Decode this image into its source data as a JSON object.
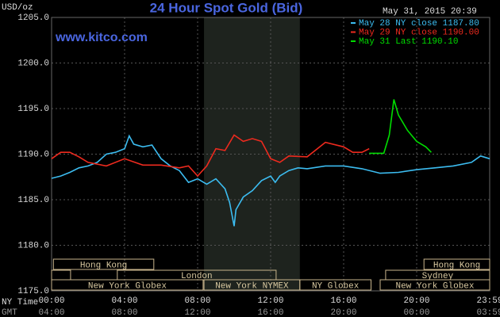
{
  "chart_data": {
    "type": "line",
    "title": "24 Hour Spot Gold (Bid)",
    "y_label": "USD/oz",
    "source": "www.kitco.com",
    "timestamp": "May 31, 2015 20:39",
    "x_label": "NY Time",
    "x2_label": "GMT",
    "xlim": [
      0,
      24
    ],
    "ylim": [
      1175,
      1205
    ],
    "yticks": [
      {
        "value": 1175,
        "label": "1175.0"
      },
      {
        "value": 1180,
        "label": "1180.0"
      },
      {
        "value": 1185,
        "label": "1185.0"
      },
      {
        "value": 1190,
        "label": "1190.0"
      },
      {
        "value": 1195,
        "label": "1195.0"
      },
      {
        "value": 1200,
        "label": "1200.0"
      },
      {
        "value": 1205,
        "label": "1205.0"
      }
    ],
    "xticks": [
      {
        "value": 0,
        "label": "00:00"
      },
      {
        "value": 4,
        "label": "04:00"
      },
      {
        "value": 8,
        "label": "08:00"
      },
      {
        "value": 12,
        "label": "12:00"
      },
      {
        "value": 16,
        "label": "16:00"
      },
      {
        "value": 20,
        "label": "20:00"
      },
      {
        "value": 24,
        "label": "23:59"
      }
    ],
    "x2ticks": [
      {
        "value": 0,
        "label": "04:00"
      },
      {
        "value": 4,
        "label": "08:00"
      },
      {
        "value": 8,
        "label": "12:00"
      },
      {
        "value": 12,
        "label": "16:00"
      },
      {
        "value": 16,
        "label": "20:00"
      },
      {
        "value": 20,
        "label": "00:00"
      },
      {
        "value": 24,
        "label": "03:59"
      }
    ],
    "grid": true,
    "shaded_range": [
      8.35,
      13.6
    ],
    "sessions": [
      {
        "label": "Hong Kong",
        "start": 0.1,
        "end": 5.6,
        "row": 0
      },
      {
        "label": "Hong Kong",
        "start": 20.4,
        "end": 24,
        "row": 0
      },
      {
        "label": null,
        "start": 0,
        "end": 1.04,
        "row": 1
      },
      {
        "label": "London",
        "start": 3.6,
        "end": 12.3,
        "row": 1
      },
      {
        "label": "Sydney",
        "start": 18.3,
        "end": 24,
        "row": 1
      },
      {
        "label": "New York Globex",
        "start": 0,
        "end": 8.3,
        "row": 2
      },
      {
        "label": "New York NYMEX",
        "start": 8.35,
        "end": 13.6,
        "row": 2
      },
      {
        "label": "NY Globex",
        "start": 13.6,
        "end": 17.5,
        "row": 2
      },
      {
        "label": "New York Globex",
        "start": 18.0,
        "end": 24,
        "row": 2
      }
    ],
    "series": [
      {
        "name": "May 28 NY close 1187.80",
        "color": "#3cbcf0",
        "x": [
          0,
          0.5,
          1,
          1.5,
          2,
          2.5,
          3,
          3.5,
          4,
          4.25,
          4.5,
          5,
          5.5,
          6,
          6.5,
          7,
          7.5,
          8,
          8.5,
          9,
          9.5,
          9.75,
          10,
          10.1,
          10.5,
          11,
          11.5,
          12,
          12.25,
          12.5,
          13,
          13.5,
          14,
          15,
          16,
          17,
          18,
          19,
          20,
          21,
          22,
          23,
          23.5,
          24
        ],
        "values": [
          1187.35,
          1187.6,
          1188.0,
          1188.5,
          1188.7,
          1189.1,
          1190.0,
          1190.2,
          1190.6,
          1192.0,
          1191.1,
          1190.8,
          1191.0,
          1189.5,
          1188.7,
          1188.2,
          1186.9,
          1187.3,
          1186.7,
          1187.3,
          1186.2,
          1184.7,
          1182.1,
          1183.9,
          1185.3,
          1186.0,
          1187.1,
          1187.6,
          1186.9,
          1187.6,
          1188.2,
          1188.5,
          1188.4,
          1188.7,
          1188.7,
          1188.4,
          1187.9,
          1188.0,
          1188.3,
          1188.5,
          1188.7,
          1189.1,
          1189.8,
          1189.5
        ]
      },
      {
        "name": "May 29 NY close 1190.00",
        "color": "#ee2a1e",
        "x": [
          0,
          0.5,
          1,
          1.5,
          2,
          3,
          4,
          5,
          6,
          7,
          7.5,
          8,
          8.5,
          9,
          9.5,
          10,
          10.5,
          11,
          11.5,
          12,
          12.5,
          13,
          14,
          15,
          16,
          16.5,
          17,
          17.4
        ],
        "values": [
          1189.5,
          1190.2,
          1190.2,
          1189.7,
          1189.1,
          1188.7,
          1189.5,
          1188.8,
          1188.8,
          1188.5,
          1188.7,
          1187.6,
          1188.7,
          1190.6,
          1190.4,
          1192.1,
          1191.4,
          1191.7,
          1191.4,
          1189.5,
          1189.1,
          1189.8,
          1189.7,
          1191.3,
          1190.8,
          1190.2,
          1190.2,
          1190.6
        ]
      },
      {
        "name": "May 31 Last 1190.10",
        "color": "#00dd00",
        "x": [
          17.4,
          18.2,
          18.5,
          18.75,
          19,
          19.5,
          20,
          20.5,
          20.8
        ],
        "values": [
          1190.1,
          1190.1,
          1192.1,
          1196.0,
          1194.3,
          1192.6,
          1191.4,
          1190.8,
          1190.2
        ]
      }
    ]
  }
}
